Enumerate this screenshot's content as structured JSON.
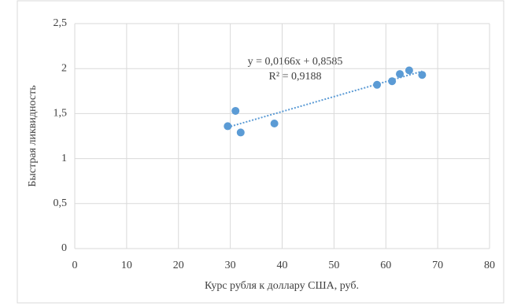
{
  "chart_data": {
    "type": "scatter",
    "x_label": "Курс рубля к доллару США, руб.",
    "y_label": "Быстрая ликвидность",
    "x": [
      29.5,
      31,
      32,
      38.5,
      58.3,
      61.2,
      62.7,
      64.5,
      67
    ],
    "values": [
      1.36,
      1.53,
      1.29,
      1.39,
      1.82,
      1.86,
      1.94,
      1.98,
      1.93
    ],
    "color": "#5b9bd5",
    "xlim": [
      0,
      80
    ],
    "xticks": [
      0,
      10,
      20,
      30,
      40,
      50,
      60,
      70,
      80
    ],
    "ylim": [
      0,
      2.5
    ],
    "yticks": [
      0,
      {
        "value": 0.5,
        "label": "0,5"
      },
      1,
      {
        "value": 1.5,
        "label": "1,5"
      },
      2,
      {
        "value": 2.5,
        "label": "2,5"
      }
    ],
    "grid": true,
    "trendline": {
      "equation": "y = 0,0166x + 0,8585",
      "r2_label": "R² = 0,9188",
      "slope": 0.0166,
      "intercept": 0.8585
    }
  }
}
